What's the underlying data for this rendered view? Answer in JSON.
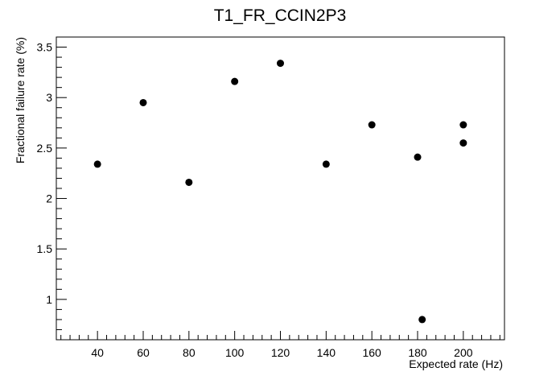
{
  "chart_data": {
    "type": "scatter",
    "title": "T1_FR_CCIN2P3",
    "xlabel": "Expected rate (Hz)",
    "ylabel": "Fractional failure rate (%)",
    "xlim": [
      22,
      218
    ],
    "ylim": [
      0.6,
      3.6
    ],
    "grid": false,
    "x_ticks": [
      40,
      60,
      80,
      100,
      120,
      140,
      160,
      180,
      200
    ],
    "x_tick_labels": [
      "40",
      "60",
      "80",
      "100",
      "120",
      "140",
      "160",
      "180",
      "200"
    ],
    "y_ticks": [
      1,
      1.5,
      2,
      2.5,
      3,
      3.5
    ],
    "y_tick_labels": [
      "1",
      "1.5",
      "2",
      "2.5",
      "3",
      "3.5"
    ],
    "series": [
      {
        "points": [
          {
            "x": 40,
            "y": 2.34
          },
          {
            "x": 60,
            "y": 2.95
          },
          {
            "x": 80,
            "y": 2.16
          },
          {
            "x": 100,
            "y": 3.16
          },
          {
            "x": 120,
            "y": 3.34
          },
          {
            "x": 140,
            "y": 2.34
          },
          {
            "x": 160,
            "y": 2.73
          },
          {
            "x": 180,
            "y": 2.41
          },
          {
            "x": 182,
            "y": 0.8
          },
          {
            "x": 200,
            "y": 2.73
          },
          {
            "x": 200,
            "y": 2.55
          }
        ]
      }
    ],
    "colors": {
      "marker": "#000000",
      "axis": "#000000"
    }
  }
}
